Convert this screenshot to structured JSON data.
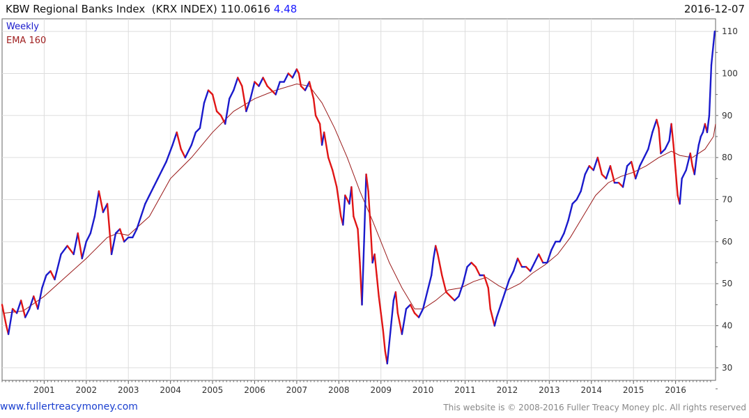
{
  "header": {
    "title": "KBW Regional Banks Index",
    "symbol": "(KRX INDEX)",
    "last": "110.0616",
    "change": "4.48",
    "date": "2016-12-07"
  },
  "legend": {
    "weekly": "Weekly",
    "ema": "EMA 160"
  },
  "footer": {
    "website": "www.fullertreacymoney.com",
    "copyright": "This website is © 2008-2016 Fuller Treacy Money plc. All rights reserved"
  },
  "colors": {
    "up": "#1a1acc",
    "down": "#e01515",
    "ema": "#9a1a1a",
    "grid": "#dddddd",
    "axis": "#666666"
  },
  "chart_data": {
    "type": "line",
    "interval": "weekly",
    "y_axis_side": "right",
    "ylim": [
      27,
      113
    ],
    "xlim": [
      2000.0,
      2016.95
    ],
    "y_ticks": [
      30,
      40,
      50,
      60,
      70,
      80,
      90,
      100,
      110
    ],
    "x_ticks": [
      "2001",
      "2002",
      "2003",
      "2004",
      "2005",
      "2006",
      "2007",
      "2008",
      "2009",
      "2010",
      "2011",
      "2012",
      "2013",
      "2014",
      "2015",
      "2016"
    ],
    "grid": true,
    "series": [
      {
        "name": "Weekly",
        "points": [
          [
            2000.0,
            45
          ],
          [
            2000.1,
            40
          ],
          [
            2000.15,
            38
          ],
          [
            2000.25,
            44
          ],
          [
            2000.35,
            43
          ],
          [
            2000.45,
            46
          ],
          [
            2000.55,
            42
          ],
          [
            2000.65,
            44
          ],
          [
            2000.75,
            47
          ],
          [
            2000.85,
            44
          ],
          [
            2000.95,
            49
          ],
          [
            2001.05,
            52
          ],
          [
            2001.15,
            53
          ],
          [
            2001.25,
            51
          ],
          [
            2001.4,
            57
          ],
          [
            2001.55,
            59
          ],
          [
            2001.7,
            57
          ],
          [
            2001.8,
            62
          ],
          [
            2001.9,
            56
          ],
          [
            2002.0,
            60
          ],
          [
            2002.1,
            62
          ],
          [
            2002.2,
            66
          ],
          [
            2002.3,
            72
          ],
          [
            2002.4,
            67
          ],
          [
            2002.5,
            69
          ],
          [
            2002.6,
            57
          ],
          [
            2002.7,
            62
          ],
          [
            2002.8,
            63
          ],
          [
            2002.9,
            60
          ],
          [
            2003.0,
            61
          ],
          [
            2003.1,
            61
          ],
          [
            2003.2,
            63
          ],
          [
            2003.3,
            66
          ],
          [
            2003.4,
            69
          ],
          [
            2003.5,
            71
          ],
          [
            2003.6,
            73
          ],
          [
            2003.7,
            75
          ],
          [
            2003.8,
            77
          ],
          [
            2003.9,
            79
          ],
          [
            2004.05,
            83
          ],
          [
            2004.15,
            86
          ],
          [
            2004.25,
            82
          ],
          [
            2004.35,
            80
          ],
          [
            2004.5,
            83
          ],
          [
            2004.6,
            86
          ],
          [
            2004.7,
            87
          ],
          [
            2004.8,
            93
          ],
          [
            2004.9,
            96
          ],
          [
            2005.0,
            95
          ],
          [
            2005.1,
            91
          ],
          [
            2005.2,
            90
          ],
          [
            2005.3,
            88
          ],
          [
            2005.4,
            94
          ],
          [
            2005.5,
            96
          ],
          [
            2005.6,
            99
          ],
          [
            2005.7,
            97
          ],
          [
            2005.8,
            91
          ],
          [
            2005.9,
            94
          ],
          [
            2006.0,
            98
          ],
          [
            2006.1,
            97
          ],
          [
            2006.2,
            99
          ],
          [
            2006.3,
            97
          ],
          [
            2006.4,
            96
          ],
          [
            2006.5,
            95
          ],
          [
            2006.6,
            98
          ],
          [
            2006.7,
            98
          ],
          [
            2006.8,
            100
          ],
          [
            2006.9,
            99
          ],
          [
            2007.0,
            101
          ],
          [
            2007.05,
            100
          ],
          [
            2007.1,
            97
          ],
          [
            2007.2,
            96
          ],
          [
            2007.3,
            98
          ],
          [
            2007.4,
            94
          ],
          [
            2007.45,
            90
          ],
          [
            2007.55,
            88
          ],
          [
            2007.6,
            83
          ],
          [
            2007.65,
            86
          ],
          [
            2007.75,
            80
          ],
          [
            2007.85,
            77
          ],
          [
            2007.95,
            73
          ],
          [
            2008.05,
            66
          ],
          [
            2008.1,
            64
          ],
          [
            2008.15,
            71
          ],
          [
            2008.25,
            69
          ],
          [
            2008.3,
            73
          ],
          [
            2008.35,
            66
          ],
          [
            2008.45,
            63
          ],
          [
            2008.5,
            55
          ],
          [
            2008.55,
            45
          ],
          [
            2008.6,
            60
          ],
          [
            2008.65,
            76
          ],
          [
            2008.7,
            72
          ],
          [
            2008.75,
            64
          ],
          [
            2008.8,
            55
          ],
          [
            2008.85,
            57
          ],
          [
            2008.9,
            52
          ],
          [
            2008.95,
            47
          ],
          [
            2009.0,
            43
          ],
          [
            2009.05,
            39
          ],
          [
            2009.1,
            34
          ],
          [
            2009.15,
            31
          ],
          [
            2009.2,
            36
          ],
          [
            2009.25,
            41
          ],
          [
            2009.3,
            46
          ],
          [
            2009.35,
            48
          ],
          [
            2009.4,
            43
          ],
          [
            2009.5,
            38
          ],
          [
            2009.6,
            44
          ],
          [
            2009.7,
            45
          ],
          [
            2009.8,
            43
          ],
          [
            2009.9,
            42
          ],
          [
            2010.0,
            44
          ],
          [
            2010.1,
            48
          ],
          [
            2010.2,
            52
          ],
          [
            2010.25,
            56
          ],
          [
            2010.3,
            59
          ],
          [
            2010.35,
            57
          ],
          [
            2010.45,
            52
          ],
          [
            2010.55,
            48
          ],
          [
            2010.65,
            47
          ],
          [
            2010.75,
            46
          ],
          [
            2010.85,
            47
          ],
          [
            2010.95,
            50
          ],
          [
            2011.05,
            54
          ],
          [
            2011.15,
            55
          ],
          [
            2011.25,
            54
          ],
          [
            2011.35,
            52
          ],
          [
            2011.45,
            52
          ],
          [
            2011.55,
            49
          ],
          [
            2011.6,
            44
          ],
          [
            2011.7,
            40
          ],
          [
            2011.75,
            42
          ],
          [
            2011.85,
            45
          ],
          [
            2011.95,
            48
          ],
          [
            2012.05,
            51
          ],
          [
            2012.15,
            53
          ],
          [
            2012.25,
            56
          ],
          [
            2012.35,
            54
          ],
          [
            2012.45,
            54
          ],
          [
            2012.55,
            53
          ],
          [
            2012.65,
            55
          ],
          [
            2012.75,
            57
          ],
          [
            2012.85,
            55
          ],
          [
            2012.95,
            55
          ],
          [
            2013.05,
            58
          ],
          [
            2013.15,
            60
          ],
          [
            2013.25,
            60
          ],
          [
            2013.35,
            62
          ],
          [
            2013.45,
            65
          ],
          [
            2013.55,
            69
          ],
          [
            2013.65,
            70
          ],
          [
            2013.75,
            72
          ],
          [
            2013.85,
            76
          ],
          [
            2013.95,
            78
          ],
          [
            2014.05,
            77
          ],
          [
            2014.15,
            80
          ],
          [
            2014.25,
            76
          ],
          [
            2014.35,
            75
          ],
          [
            2014.45,
            78
          ],
          [
            2014.55,
            74
          ],
          [
            2014.65,
            74
          ],
          [
            2014.75,
            73
          ],
          [
            2014.85,
            78
          ],
          [
            2014.95,
            79
          ],
          [
            2015.05,
            75
          ],
          [
            2015.15,
            78
          ],
          [
            2015.25,
            80
          ],
          [
            2015.35,
            82
          ],
          [
            2015.45,
            86
          ],
          [
            2015.55,
            89
          ],
          [
            2015.6,
            87
          ],
          [
            2015.65,
            81
          ],
          [
            2015.75,
            82
          ],
          [
            2015.85,
            84
          ],
          [
            2015.9,
            88
          ],
          [
            2015.95,
            83
          ],
          [
            2016.0,
            77
          ],
          [
            2016.05,
            71
          ],
          [
            2016.1,
            69
          ],
          [
            2016.15,
            75
          ],
          [
            2016.25,
            77
          ],
          [
            2016.35,
            81
          ],
          [
            2016.4,
            78
          ],
          [
            2016.45,
            76
          ],
          [
            2016.5,
            80
          ],
          [
            2016.55,
            83
          ],
          [
            2016.6,
            85
          ],
          [
            2016.65,
            86
          ],
          [
            2016.7,
            88
          ],
          [
            2016.75,
            86
          ],
          [
            2016.8,
            90
          ],
          [
            2016.85,
            102
          ],
          [
            2016.9,
            107
          ],
          [
            2016.93,
            110
          ]
        ]
      },
      {
        "name": "EMA 160",
        "points": [
          [
            2000.05,
            43
          ],
          [
            2000.5,
            43.5
          ],
          [
            2001.0,
            47
          ],
          [
            2001.5,
            51.5
          ],
          [
            2002.0,
            56
          ],
          [
            2002.5,
            61
          ],
          [
            2002.75,
            62
          ],
          [
            2003.0,
            61.5
          ],
          [
            2003.5,
            66
          ],
          [
            2004.0,
            75
          ],
          [
            2004.5,
            80
          ],
          [
            2005.0,
            86
          ],
          [
            2005.5,
            91
          ],
          [
            2006.0,
            94
          ],
          [
            2006.5,
            96
          ],
          [
            2007.0,
            97.5
          ],
          [
            2007.3,
            97
          ],
          [
            2007.6,
            93
          ],
          [
            2007.9,
            87
          ],
          [
            2008.2,
            80
          ],
          [
            2008.5,
            72
          ],
          [
            2008.8,
            65
          ],
          [
            2009.0,
            60
          ],
          [
            2009.2,
            55
          ],
          [
            2009.5,
            49
          ],
          [
            2009.8,
            44
          ],
          [
            2010.0,
            44
          ],
          [
            2010.3,
            46
          ],
          [
            2010.6,
            48.5
          ],
          [
            2010.9,
            49
          ],
          [
            2011.2,
            50.5
          ],
          [
            2011.5,
            51.5
          ],
          [
            2011.8,
            49.5
          ],
          [
            2012.0,
            48.5
          ],
          [
            2012.3,
            50
          ],
          [
            2012.6,
            52.5
          ],
          [
            2012.9,
            54.5
          ],
          [
            2013.2,
            57
          ],
          [
            2013.5,
            61
          ],
          [
            2013.8,
            66
          ],
          [
            2014.1,
            71
          ],
          [
            2014.4,
            74
          ],
          [
            2014.7,
            75.5
          ],
          [
            2015.0,
            76.5
          ],
          [
            2015.3,
            78
          ],
          [
            2015.6,
            80
          ],
          [
            2015.9,
            81.5
          ],
          [
            2016.1,
            80.5
          ],
          [
            2016.4,
            80
          ],
          [
            2016.7,
            82
          ],
          [
            2016.9,
            85
          ],
          [
            2016.95,
            88
          ]
        ]
      }
    ]
  }
}
